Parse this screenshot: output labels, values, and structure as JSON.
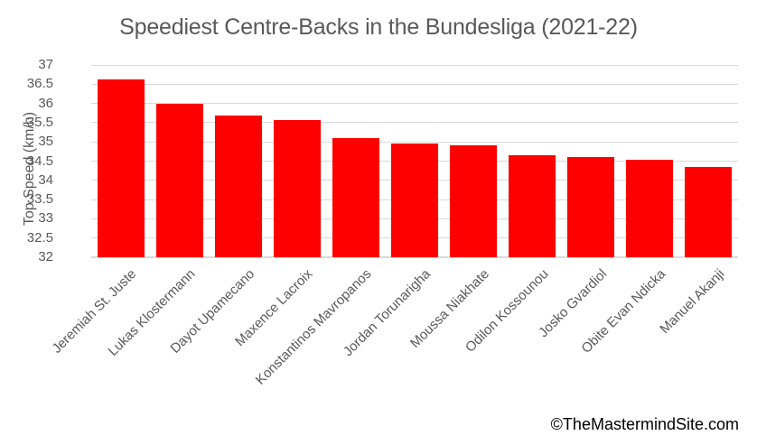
{
  "chart": {
    "watermark": "©TheMastermindSite.com"
  },
  "chart_data": {
    "type": "bar",
    "title": "Speediest Centre-Backs in the Bundesliga (2021-22)",
    "categories": [
      "Jeremiah St. Juste",
      "Lukas Klostermann",
      "Dayot Upamecano",
      "Maxence Lacroix",
      "Konstantinos Mavropanos",
      "Jordan Torunarigha",
      "Moussa Niakhate",
      "Odilon Kossounou",
      "Josko Gvardiol",
      "Obite Evan Ndicka",
      "Manuel Akanji"
    ],
    "values": [
      36.62,
      35.98,
      35.68,
      35.56,
      35.09,
      34.95,
      34.9,
      34.65,
      34.6,
      34.54,
      34.35
    ],
    "xlabel": "",
    "ylabel": "Top Speed (km/h)",
    "ylim": [
      32,
      37
    ],
    "yticks": [
      32,
      32.5,
      33,
      33.5,
      34,
      34.5,
      35,
      35.5,
      36,
      36.5,
      37
    ],
    "grid": true,
    "legend": false,
    "bar_color": "#ff0000",
    "gridline_color": "#d9d9d9",
    "text_color": "#595959",
    "title_color": "#595959",
    "watermark_color": "#000000",
    "x_label_rotation_deg": 45
  }
}
